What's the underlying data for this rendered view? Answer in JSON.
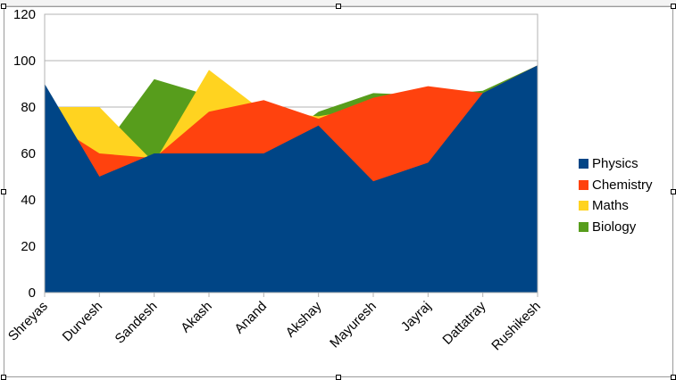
{
  "chart_data": {
    "type": "area",
    "stacked": false,
    "categories": [
      "Shreyas",
      "Durvesh",
      "Sandesh",
      "Akash",
      "Anand",
      "Akshay",
      "Mayuresh",
      "Jayraj",
      "Dattatray",
      "Rushikesh"
    ],
    "series": [
      {
        "name": "Biology",
        "color": "#579d1c",
        "values": [
          80,
          60,
          92,
          85,
          60,
          78,
          86,
          85,
          87,
          98
        ]
      },
      {
        "name": "Maths",
        "color": "#ffd320",
        "values": [
          80,
          80,
          56,
          96,
          78,
          76,
          80,
          82,
          86,
          97
        ]
      },
      {
        "name": "Chemistry",
        "color": "#ff420e",
        "values": [
          75,
          60,
          58,
          78,
          83,
          75,
          84,
          89,
          86,
          98
        ]
      },
      {
        "name": "Physics",
        "color": "#004586",
        "values": [
          90,
          50,
          60,
          60,
          60,
          72,
          48,
          56,
          86,
          98
        ]
      }
    ],
    "legend_order": [
      "Physics",
      "Chemistry",
      "Maths",
      "Biology"
    ],
    "legend_position": "right",
    "ylim": [
      0,
      120
    ],
    "yticks": [
      0,
      20,
      40,
      60,
      80,
      100,
      120
    ],
    "grid": true
  }
}
